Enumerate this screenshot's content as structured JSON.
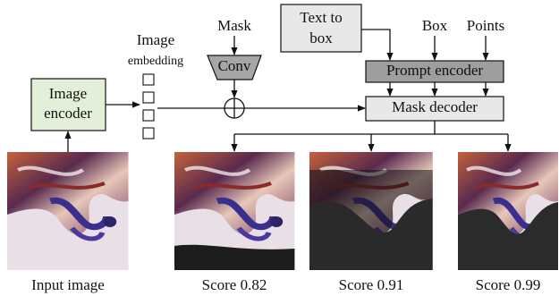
{
  "nodes": {
    "mask": "Mask",
    "text_to_box": [
      "Text to",
      "box"
    ],
    "box": "Box",
    "points": "Points",
    "image_embedding": [
      "Image",
      "embedding"
    ],
    "conv": "Conv",
    "prompt_encoder": "Prompt encoder",
    "image_encoder": [
      "Image",
      "encoder"
    ],
    "mask_decoder": "Mask decoder"
  },
  "images": {
    "input": "Input image",
    "outputs": [
      "Score 0.82",
      "Score 0.91",
      "Score 0.99"
    ]
  }
}
